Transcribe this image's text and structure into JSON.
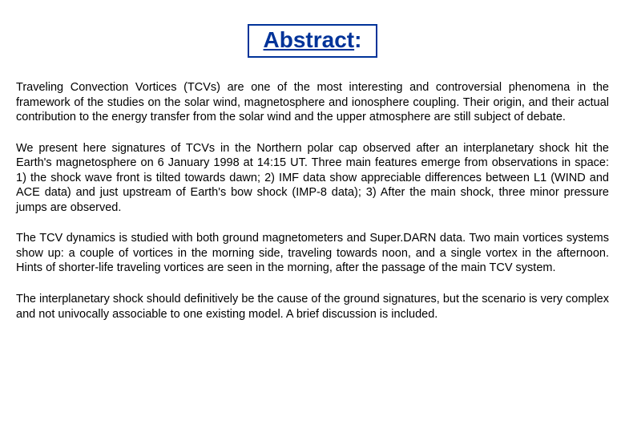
{
  "title": {
    "text": "Abstract",
    "color": "#003399",
    "border_color": "#003399",
    "fontsize": 28
  },
  "body": {
    "fontsize": 14.5,
    "text_color": "#000000",
    "background_color": "#ffffff",
    "paragraphs": [
      "Traveling Convection Vortices (TCVs) are one of the most interesting and controversial phenomena in the framework of the studies on the solar wind, magnetosphere and ionosphere coupling. Their origin, and their actual contribution to the energy transfer from the solar wind and the upper atmosphere are still subject of debate.",
      "We present here signatures of TCVs in the Northern polar cap observed after an interplanetary shock hit the Earth's magnetosphere on 6 January 1998 at 14:15 UT. Three main features emerge from observations in space: 1) the shock wave front is tilted towards dawn; 2) IMF data show appreciable differences between L1 (WIND and ACE data) and just upstream of Earth's bow shock (IMP-8 data); 3) After the main shock, three minor pressure jumps are observed.",
      "The TCV dynamics is studied with both ground magnetometers and Super.DARN data. Two main vortices systems show up: a couple of vortices in the morning side, traveling towards noon, and a single vortex in the afternoon. Hints of shorter-life traveling vortices are seen in the morning, after the passage of the main TCV system.",
      "The interplanetary shock should definitively be the cause of the ground signatures, but the scenario is very complex and not univocally associable to one existing model. A brief discussion is included."
    ]
  }
}
